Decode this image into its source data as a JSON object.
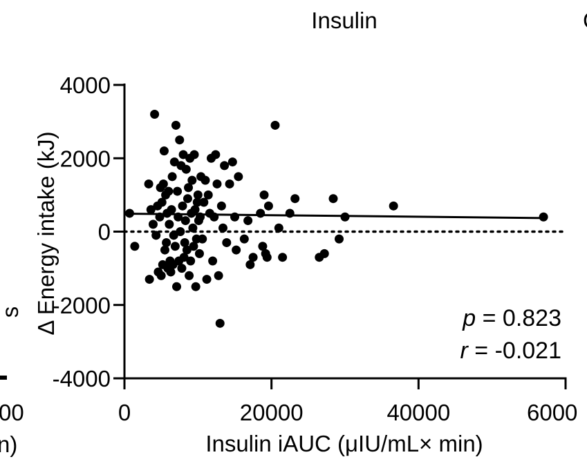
{
  "chart_data": {
    "type": "scatter",
    "title": "Insulin",
    "xlabel": "Insulin iAUC (μIU/mL× min)",
    "ylabel": "Δ Energy intake (kJ)",
    "xlim": [
      0,
      60000
    ],
    "ylim": [
      -4000,
      4000
    ],
    "xticks": [
      "0",
      "20000",
      "40000",
      "6000"
    ],
    "yticks": [
      "4000",
      "2000",
      "0",
      "-2000",
      "-4000"
    ],
    "annotations": [
      {
        "name": "p-value",
        "symbol": "p",
        "text": " = 0.823"
      },
      {
        "name": "r-value",
        "symbol": "r",
        "text": " = -0.021"
      }
    ],
    "partial_left_panel": {
      "tick_label": "00",
      "axis_label_fragment": "n)",
      "ylabel_fragment": "s"
    },
    "partial_right_panel_letter": "C",
    "regression_line": {
      "x": [
        0,
        57000
      ],
      "y": [
        490,
        370
      ]
    },
    "reference_line_y": 0,
    "points": {
      "x": [
        700,
        1400,
        3300,
        3400,
        3600,
        3900,
        4100,
        4300,
        4500,
        4600,
        4800,
        4900,
        5000,
        5100,
        5200,
        5300,
        5400,
        5500,
        5600,
        5700,
        5800,
        5900,
        6000,
        6100,
        6200,
        6300,
        6400,
        6500,
        6600,
        6700,
        6800,
        6900,
        7000,
        7100,
        7200,
        7300,
        7400,
        7500,
        7600,
        7700,
        7800,
        7900,
        8000,
        8100,
        8200,
        8300,
        8400,
        8500,
        8600,
        8700,
        8800,
        8900,
        9000,
        9100,
        9200,
        9300,
        9400,
        9500,
        9600,
        9700,
        9800,
        9900,
        10000,
        10100,
        10200,
        10300,
        10400,
        10600,
        10800,
        11000,
        11200,
        11400,
        11600,
        11800,
        12000,
        12200,
        12400,
        12600,
        12800,
        13000,
        13200,
        13400,
        13600,
        13900,
        14300,
        14700,
        15000,
        15200,
        15500,
        16300,
        16800,
        17100,
        17500,
        18500,
        18800,
        19000,
        19200,
        19400,
        19600,
        20500,
        21000,
        21500,
        22500,
        23200,
        26500,
        27200,
        28400,
        29200,
        30000,
        36600,
        57000
      ],
      "y": [
        500,
        -400,
        1300,
        -1300,
        600,
        200,
        3200,
        -100,
        700,
        -1100,
        400,
        1200,
        -1200,
        800,
        -900,
        1300,
        2200,
        -500,
        1000,
        -300,
        500,
        -1000,
        1100,
        200,
        -800,
        -1100,
        600,
        1500,
        -900,
        -100,
        1900,
        -400,
        2900,
        -1500,
        1100,
        400,
        -800,
        2500,
        0,
        1800,
        -1000,
        700,
        2100,
        -700,
        -300,
        300,
        1700,
        -500,
        900,
        1200,
        -1200,
        2000,
        -800,
        500,
        1400,
        100,
        -400,
        2100,
        600,
        -1500,
        -200,
        800,
        1000,
        300,
        -600,
        400,
        1500,
        -200,
        800,
        1400,
        -1300,
        1000,
        500,
        2000,
        -800,
        400,
        2100,
        1300,
        -1200,
        -2500,
        700,
        100,
        1800,
        -300,
        1300,
        1900,
        400,
        -500,
        1500,
        -200,
        300,
        -900,
        -700,
        500,
        -400,
        1000,
        -600,
        -700,
        700,
        2900,
        100,
        -700,
        500,
        900,
        -700,
        -600,
        900,
        -200,
        400,
        700,
        400
      ]
    }
  }
}
